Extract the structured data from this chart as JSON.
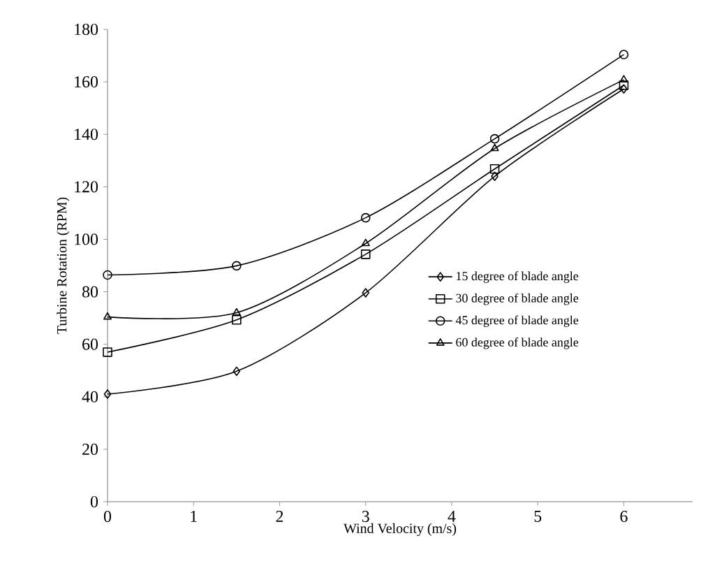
{
  "chart_data": {
    "type": "line",
    "xlabel": "Wind Velocity (m/s)",
    "ylabel": "Turbine Rotation (RPM)",
    "x": [
      0,
      1.5,
      3,
      4.5,
      6
    ],
    "series": [
      {
        "name": "15 degree of blade angle",
        "color": "#000000",
        "marker": "diamond",
        "values": [
          41,
          49.7,
          79.6,
          124,
          157.3
        ]
      },
      {
        "name": "30 degree of blade angle",
        "color": "#000000",
        "marker": "square",
        "values": [
          57,
          69.3,
          94.3,
          126.8,
          158.7
        ]
      },
      {
        "name": "45 degree of blade angle",
        "color": "#000000",
        "marker": "circle",
        "values": [
          86.4,
          89.9,
          108.2,
          138.3,
          170.4
        ]
      },
      {
        "name": "60 degree of blade angle",
        "color": "#000000",
        "marker": "triangle",
        "values": [
          70.4,
          72,
          98.4,
          134.6,
          160.8
        ]
      }
    ],
    "xlim": [
      0,
      6.8
    ],
    "ylim": [
      0,
      180
    ],
    "xticks": [
      0,
      1,
      2,
      3,
      4,
      5,
      6
    ],
    "yticks": [
      0,
      20,
      40,
      60,
      80,
      100,
      120,
      140,
      160,
      180
    ],
    "grid": false,
    "legend": "right",
    "line_style": "solid"
  }
}
